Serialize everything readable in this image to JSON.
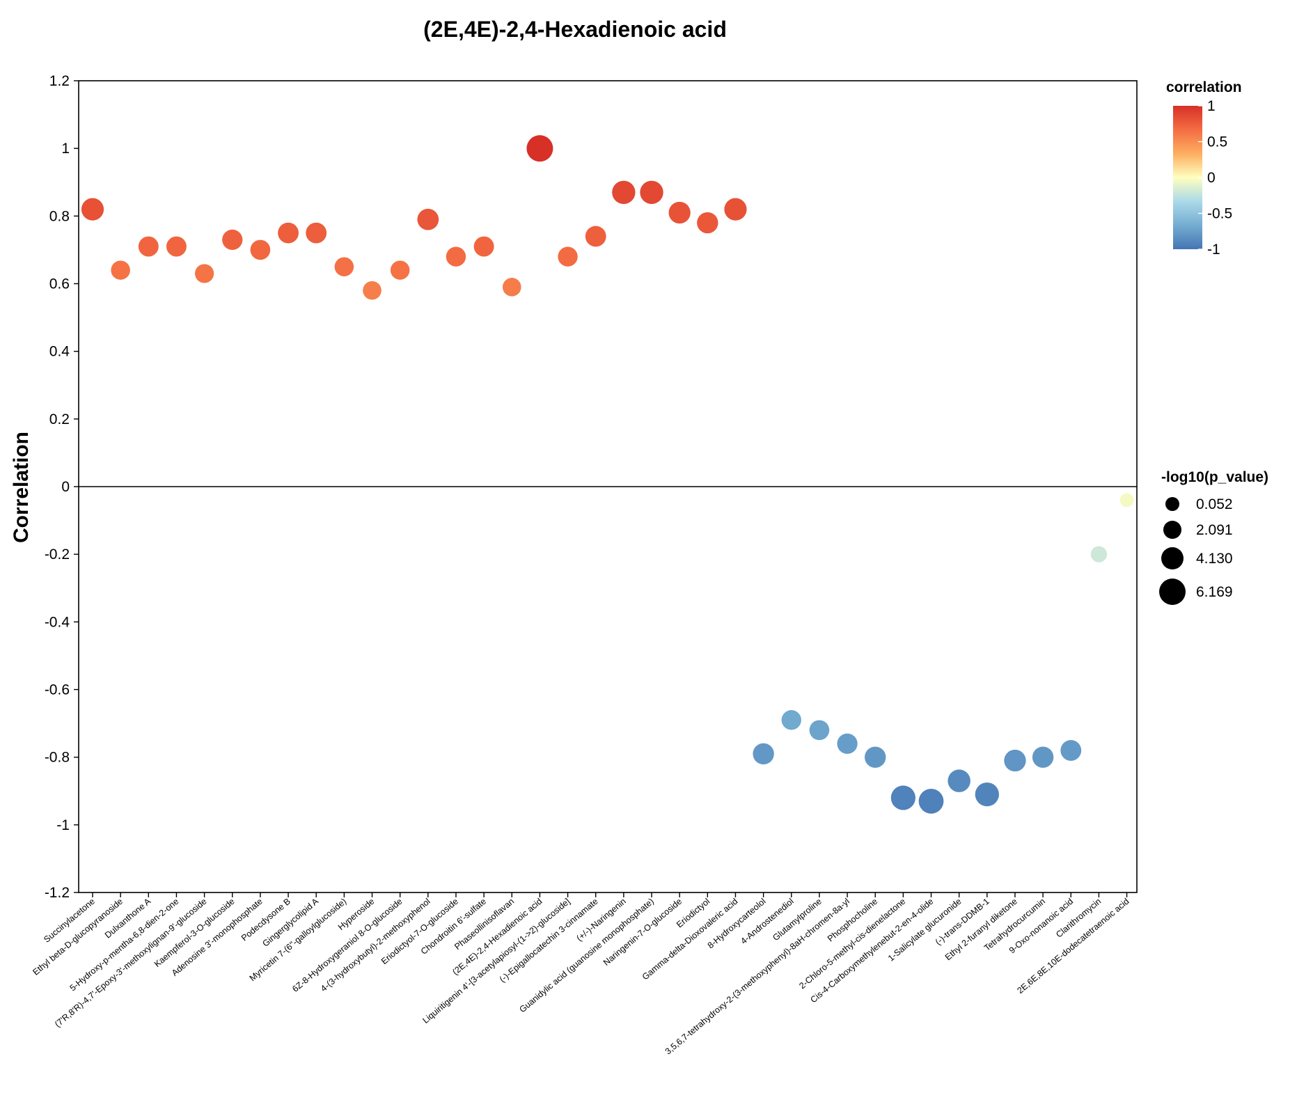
{
  "chart_data": {
    "type": "scatter",
    "title": "(2E,4E)-2,4-Hexadienoic acid",
    "xlabel": "",
    "ylabel": "Correlation",
    "ylim": [
      -1.2,
      1.2
    ],
    "yticks": [
      "1.2",
      "1",
      "0.8",
      "0.6",
      "0.4",
      "0.2",
      "0",
      "-0.2",
      "-0.4",
      "-0.6",
      "-0.8",
      "-1",
      "-1.2"
    ],
    "ytick_values": [
      1.2,
      1,
      0.8,
      0.6,
      0.4,
      0.2,
      0,
      -0.2,
      -0.4,
      -0.6,
      -0.8,
      -1,
      -1.2
    ],
    "zero_line": true,
    "categories": [
      "Succinylacetone",
      "Ethyl beta-D-glucopyranoside",
      "Dulxanthone A",
      "5-Hydroxy-p-mentha-6,8-dien-2-one",
      "(7'R,8'R)-4,7'-Epoxy-3'-methoxylignan-9'-glucoside",
      "Kaempferol-3-O-glucoside",
      "Adenosine 3'-monophosphate",
      "Podecdysone B",
      "Gingerglycolipid A",
      "Myricetin 7-(6''-galloylglucoside)",
      "Hyperoside",
      "6Z-8-Hydroxygeraniol 8-O-glucoside",
      "4-(3-hydroxybutyl)-2-methoxyphenol",
      "Eriodictyol-7-O-glucoside",
      "Chondroitin 6'-sulfate",
      "Phaseollinisoflavan",
      "(2E,4E)-2,4-Hexadienoic acid",
      "Liquiritigenin 4'-[3-acetylapiosyl-(1->2)-glucoside]",
      "(-)-Epigallocatechin 3-cinnamate",
      "(+/-)-Naringenin",
      "Guanidylic acid (guanosine monophosphate)",
      "Naringenin-7-O-glucoside",
      "Eriodictyol",
      "Gamma-delta-Dioxovaleric acid",
      "8-Hydroxycarteolol",
      "4-Androstenediol",
      "Glutamylproline",
      "3,5,6,7-tetrahydroxy-2-(3-methoxyphenyl)-8aH-chromen-8a-yl",
      "Phosphocholine",
      "2-Chloro-5-methyl-cis-dienelactone",
      "Cis-4-Carboxymethylenebut-2-en-4-olide",
      "1-Salicylate glucuronide",
      "(-)-trans-DDMB-1",
      "Ethyl 2-furanyl diketone",
      "Tetrahydrocurcumin",
      "9-Oxo-nonanoic acid",
      "Clarithromycin",
      "2E,6E,8E,10E-dodecatetraenoic acid"
    ],
    "values": [
      0.82,
      0.64,
      0.71,
      0.71,
      0.63,
      0.73,
      0.7,
      0.75,
      0.75,
      0.65,
      0.58,
      0.64,
      0.79,
      0.68,
      0.71,
      0.59,
      1.0,
      0.68,
      0.74,
      0.87,
      0.87,
      0.81,
      0.78,
      0.82,
      -0.79,
      -0.69,
      -0.72,
      -0.76,
      -0.8,
      -0.92,
      -0.93,
      -0.87,
      -0.91,
      -0.81,
      -0.8,
      -0.78,
      -0.2,
      -0.04
    ],
    "neglog10_p": [
      4.2,
      2.6,
      3.1,
      3.1,
      2.5,
      3.2,
      3.0,
      3.4,
      3.4,
      2.6,
      2.3,
      2.6,
      3.7,
      2.9,
      3.1,
      2.3,
      6.169,
      2.9,
      3.4,
      4.6,
      4.6,
      3.9,
      3.6,
      4.2,
      3.6,
      2.9,
      3.0,
      3.2,
      3.6,
      5.2,
      5.4,
      4.3,
      4.9,
      3.9,
      3.6,
      3.4,
      1.2,
      0.052
    ],
    "color_legend": {
      "title": "correlation",
      "labels": [
        "1",
        "0.5",
        "0",
        "-0.5",
        "-1"
      ],
      "label_values": [
        1,
        0.5,
        0,
        -0.5,
        -1
      ],
      "stops": [
        "#d73027",
        "#f46d43",
        "#fdae61",
        "#ffffbf",
        "#abd9e9",
        "#74add1",
        "#4575b4"
      ]
    },
    "size_legend": {
      "title": "-log10(p_value)",
      "labels": [
        "0.052",
        "2.091",
        "4.130",
        "6.169"
      ],
      "label_values": [
        0.052,
        2.091,
        4.13,
        6.169
      ]
    }
  }
}
